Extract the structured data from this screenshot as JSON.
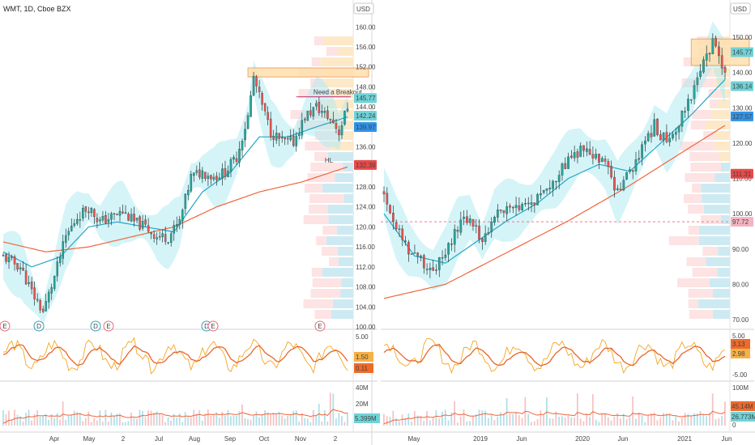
{
  "window": {
    "symbol_label": "WMT, 1D, Cboe BZX",
    "currency_button": "USD"
  },
  "colors": {
    "candle_up": "#26a69a",
    "candle_down": "#ef5350",
    "ma_fast": "#26a6c6",
    "ma_slow": "#f0643c",
    "band_fill": "#b2ebf2",
    "zone_fill": "#ffe0b2",
    "zone_stroke": "#e8a060",
    "osc_fast": "#f5a623",
    "osc_slow": "#e8662a",
    "volume": "#b2dfe8",
    "volume_ma": "#f0643c",
    "profile_up": "#cdeaf2",
    "profile_down": "#fde3e3",
    "profile_warm": "#fde8c8"
  },
  "chart_data": [
    {
      "type": "candlestick",
      "title": "WMT, 1D, Cboe BZX",
      "xlabel": "",
      "ylabel": "USD",
      "x_ticks": [
        "Apr",
        "May",
        "2",
        "Jul",
        "Aug",
        "Sep",
        "Oct",
        "Nov",
        "2"
      ],
      "y_ticks": [
        100.0,
        104.0,
        108.0,
        112.0,
        116.0,
        120.0,
        124.0,
        128.0,
        132.0,
        136.0,
        140.0,
        144.0,
        148.0,
        152.0,
        156.0,
        160.0
      ],
      "ylim": [
        99,
        161
      ],
      "series_close_path": [
        [
          0,
          114
        ],
        [
          6,
          112
        ],
        [
          10,
          107
        ],
        [
          14,
          103
        ],
        [
          18,
          110
        ],
        [
          22,
          118
        ],
        [
          26,
          122
        ],
        [
          30,
          124
        ],
        [
          34,
          121
        ],
        [
          38,
          122
        ],
        [
          42,
          123
        ],
        [
          46,
          121
        ],
        [
          50,
          120
        ],
        [
          54,
          118
        ],
        [
          58,
          118
        ],
        [
          62,
          121
        ],
        [
          66,
          130
        ],
        [
          70,
          131
        ],
        [
          74,
          130
        ],
        [
          78,
          131
        ],
        [
          82,
          134
        ],
        [
          86,
          142
        ],
        [
          88,
          150
        ],
        [
          90,
          146
        ],
        [
          94,
          139
        ],
        [
          98,
          137
        ],
        [
          102,
          137
        ],
        [
          106,
          142
        ],
        [
          110,
          144
        ],
        [
          112,
          143
        ],
        [
          116,
          141
        ],
        [
          118,
          139
        ],
        [
          121,
          144
        ]
      ],
      "series": [
        {
          "name": "",
          "kind": "ma_fast",
          "values": [
            [
              0,
              115
            ],
            [
              10,
              112
            ],
            [
              20,
              114
            ],
            [
              30,
              120
            ],
            [
              40,
              121
            ],
            [
              50,
              120
            ],
            [
              60,
              119
            ],
            [
              70,
              127
            ],
            [
              80,
              131
            ],
            [
              90,
              138
            ],
            [
              100,
              138
            ],
            [
              110,
              140
            ],
            [
              121,
              142
            ]
          ]
        },
        {
          "name": "",
          "kind": "ma_slow",
          "values": [
            [
              0,
              117
            ],
            [
              15,
              115
            ],
            [
              30,
              116
            ],
            [
              45,
              118
            ],
            [
              60,
              120
            ],
            [
              75,
              124
            ],
            [
              90,
              127
            ],
            [
              105,
              129
            ],
            [
              121,
              132
            ]
          ]
        }
      ],
      "resistance_zone": {
        "y_low": 150.0,
        "y_high": 151.8
      },
      "annotations": [
        {
          "text": "Need a Breakout",
          "y": 146.5
        },
        {
          "text": "HL",
          "y": 134.5
        }
      ],
      "price_labels": [
        {
          "text": "145.77",
          "value": 145.77,
          "bg": "#6fd3d8"
        },
        {
          "text": "142.24",
          "value": 142.24,
          "bg": "#6fd3d8"
        },
        {
          "text": "139.97",
          "value": 139.97,
          "bg": "#2f93e8"
        },
        {
          "text": "132.39",
          "value": 132.39,
          "bg": "#e84a4a"
        }
      ],
      "event_markers": [
        {
          "text": "E",
          "kind": "earnings"
        },
        {
          "text": "D",
          "kind": "dividend"
        },
        {
          "text": "D",
          "kind": "dividend"
        },
        {
          "text": "E",
          "kind": "earnings"
        },
        {
          "text": "D",
          "kind": "dividend"
        },
        {
          "text": "E",
          "kind": "earnings"
        },
        {
          "text": "E",
          "kind": "earnings"
        }
      ],
      "oscillator": {
        "y_ticks": [
          5.0,
          0.0,
          -5.0
        ],
        "y_tick_labels": [
          "5.00",
          "",
          ""
        ],
        "values_label": [
          {
            "text": "1.50",
            "bg": "#f7b046"
          },
          {
            "text": "0.11",
            "bg": "#ee6a2b"
          }
        ]
      },
      "volume": {
        "y_ticks": [
          "40M",
          "20M"
        ],
        "last_label": {
          "text": "5.399M",
          "bg": "#6fd3d8"
        }
      }
    },
    {
      "type": "candlestick",
      "title": "",
      "xlabel": "",
      "ylabel": "USD",
      "x_ticks": [
        "May",
        "2019",
        "Jun",
        "2020",
        "Jun",
        "2021",
        "Jun"
      ],
      "y_ticks": [
        70.0,
        80.0,
        90.0,
        100.0,
        110.0,
        120.0,
        130.0,
        140.0,
        150.0,
        160.0
      ],
      "ylim": [
        67,
        161
      ],
      "series_close_path": [
        [
          0,
          106
        ],
        [
          4,
          96
        ],
        [
          8,
          90
        ],
        [
          12,
          87
        ],
        [
          16,
          84
        ],
        [
          20,
          88
        ],
        [
          24,
          96
        ],
        [
          28,
          99
        ],
        [
          32,
          92
        ],
        [
          36,
          100
        ],
        [
          40,
          101
        ],
        [
          44,
          101
        ],
        [
          48,
          103
        ],
        [
          52,
          107
        ],
        [
          56,
          110
        ],
        [
          60,
          115
        ],
        [
          64,
          118
        ],
        [
          68,
          116
        ],
        [
          72,
          114
        ],
        [
          76,
          106
        ],
        [
          80,
          112
        ],
        [
          84,
          118
        ],
        [
          88,
          125
        ],
        [
          92,
          120
        ],
        [
          96,
          126
        ],
        [
          100,
          134
        ],
        [
          104,
          142
        ],
        [
          107,
          148
        ],
        [
          111,
          140
        ]
      ],
      "series": [
        {
          "name": "",
          "kind": "ma_fast",
          "values": [
            [
              0,
              100
            ],
            [
              10,
              88
            ],
            [
              20,
              86
            ],
            [
              30,
              92
            ],
            [
              40,
              98
            ],
            [
              50,
              103
            ],
            [
              60,
              110
            ],
            [
              70,
              114
            ],
            [
              80,
              112
            ],
            [
              90,
              120
            ],
            [
              100,
              128
            ],
            [
              111,
              138
            ]
          ]
        },
        {
          "name": "",
          "kind": "ma_slow",
          "values": [
            [
              0,
              76
            ],
            [
              20,
              80
            ],
            [
              40,
              89
            ],
            [
              60,
              98
            ],
            [
              80,
              108
            ],
            [
              100,
              119
            ],
            [
              111,
              125
            ]
          ]
        }
      ],
      "resistance_zone": {
        "y_low": 142.0,
        "y_high": 149.5
      },
      "dashed_level": 97.72,
      "price_labels": [
        {
          "text": "145.77",
          "value": 145.77,
          "bg": "#6fd3d8"
        },
        {
          "text": "136.14",
          "value": 136.14,
          "bg": "#6fd3d8"
        },
        {
          "text": "127.57",
          "value": 127.57,
          "bg": "#2f93e8"
        },
        {
          "text": "111.31",
          "value": 111.31,
          "bg": "#e84a4a"
        },
        {
          "text": "97.72",
          "value": 97.72,
          "bg": "#f4b4c0"
        }
      ],
      "oscillator": {
        "y_ticks": [
          5.0,
          0.0,
          -5.0
        ],
        "y_tick_labels": [
          "5.00",
          "",
          "-5.00"
        ],
        "values_label": [
          {
            "text": "3.13",
            "bg": "#ee6a2b"
          },
          {
            "text": "2.98",
            "bg": "#f7b046"
          }
        ]
      },
      "volume": {
        "y_ticks": [
          "100M",
          "0"
        ],
        "last_label": [
          {
            "text": "45.14M",
            "bg": "#ee6a2b"
          },
          {
            "text": "26.773M",
            "bg": "#6fd3d8"
          }
        ]
      }
    }
  ]
}
